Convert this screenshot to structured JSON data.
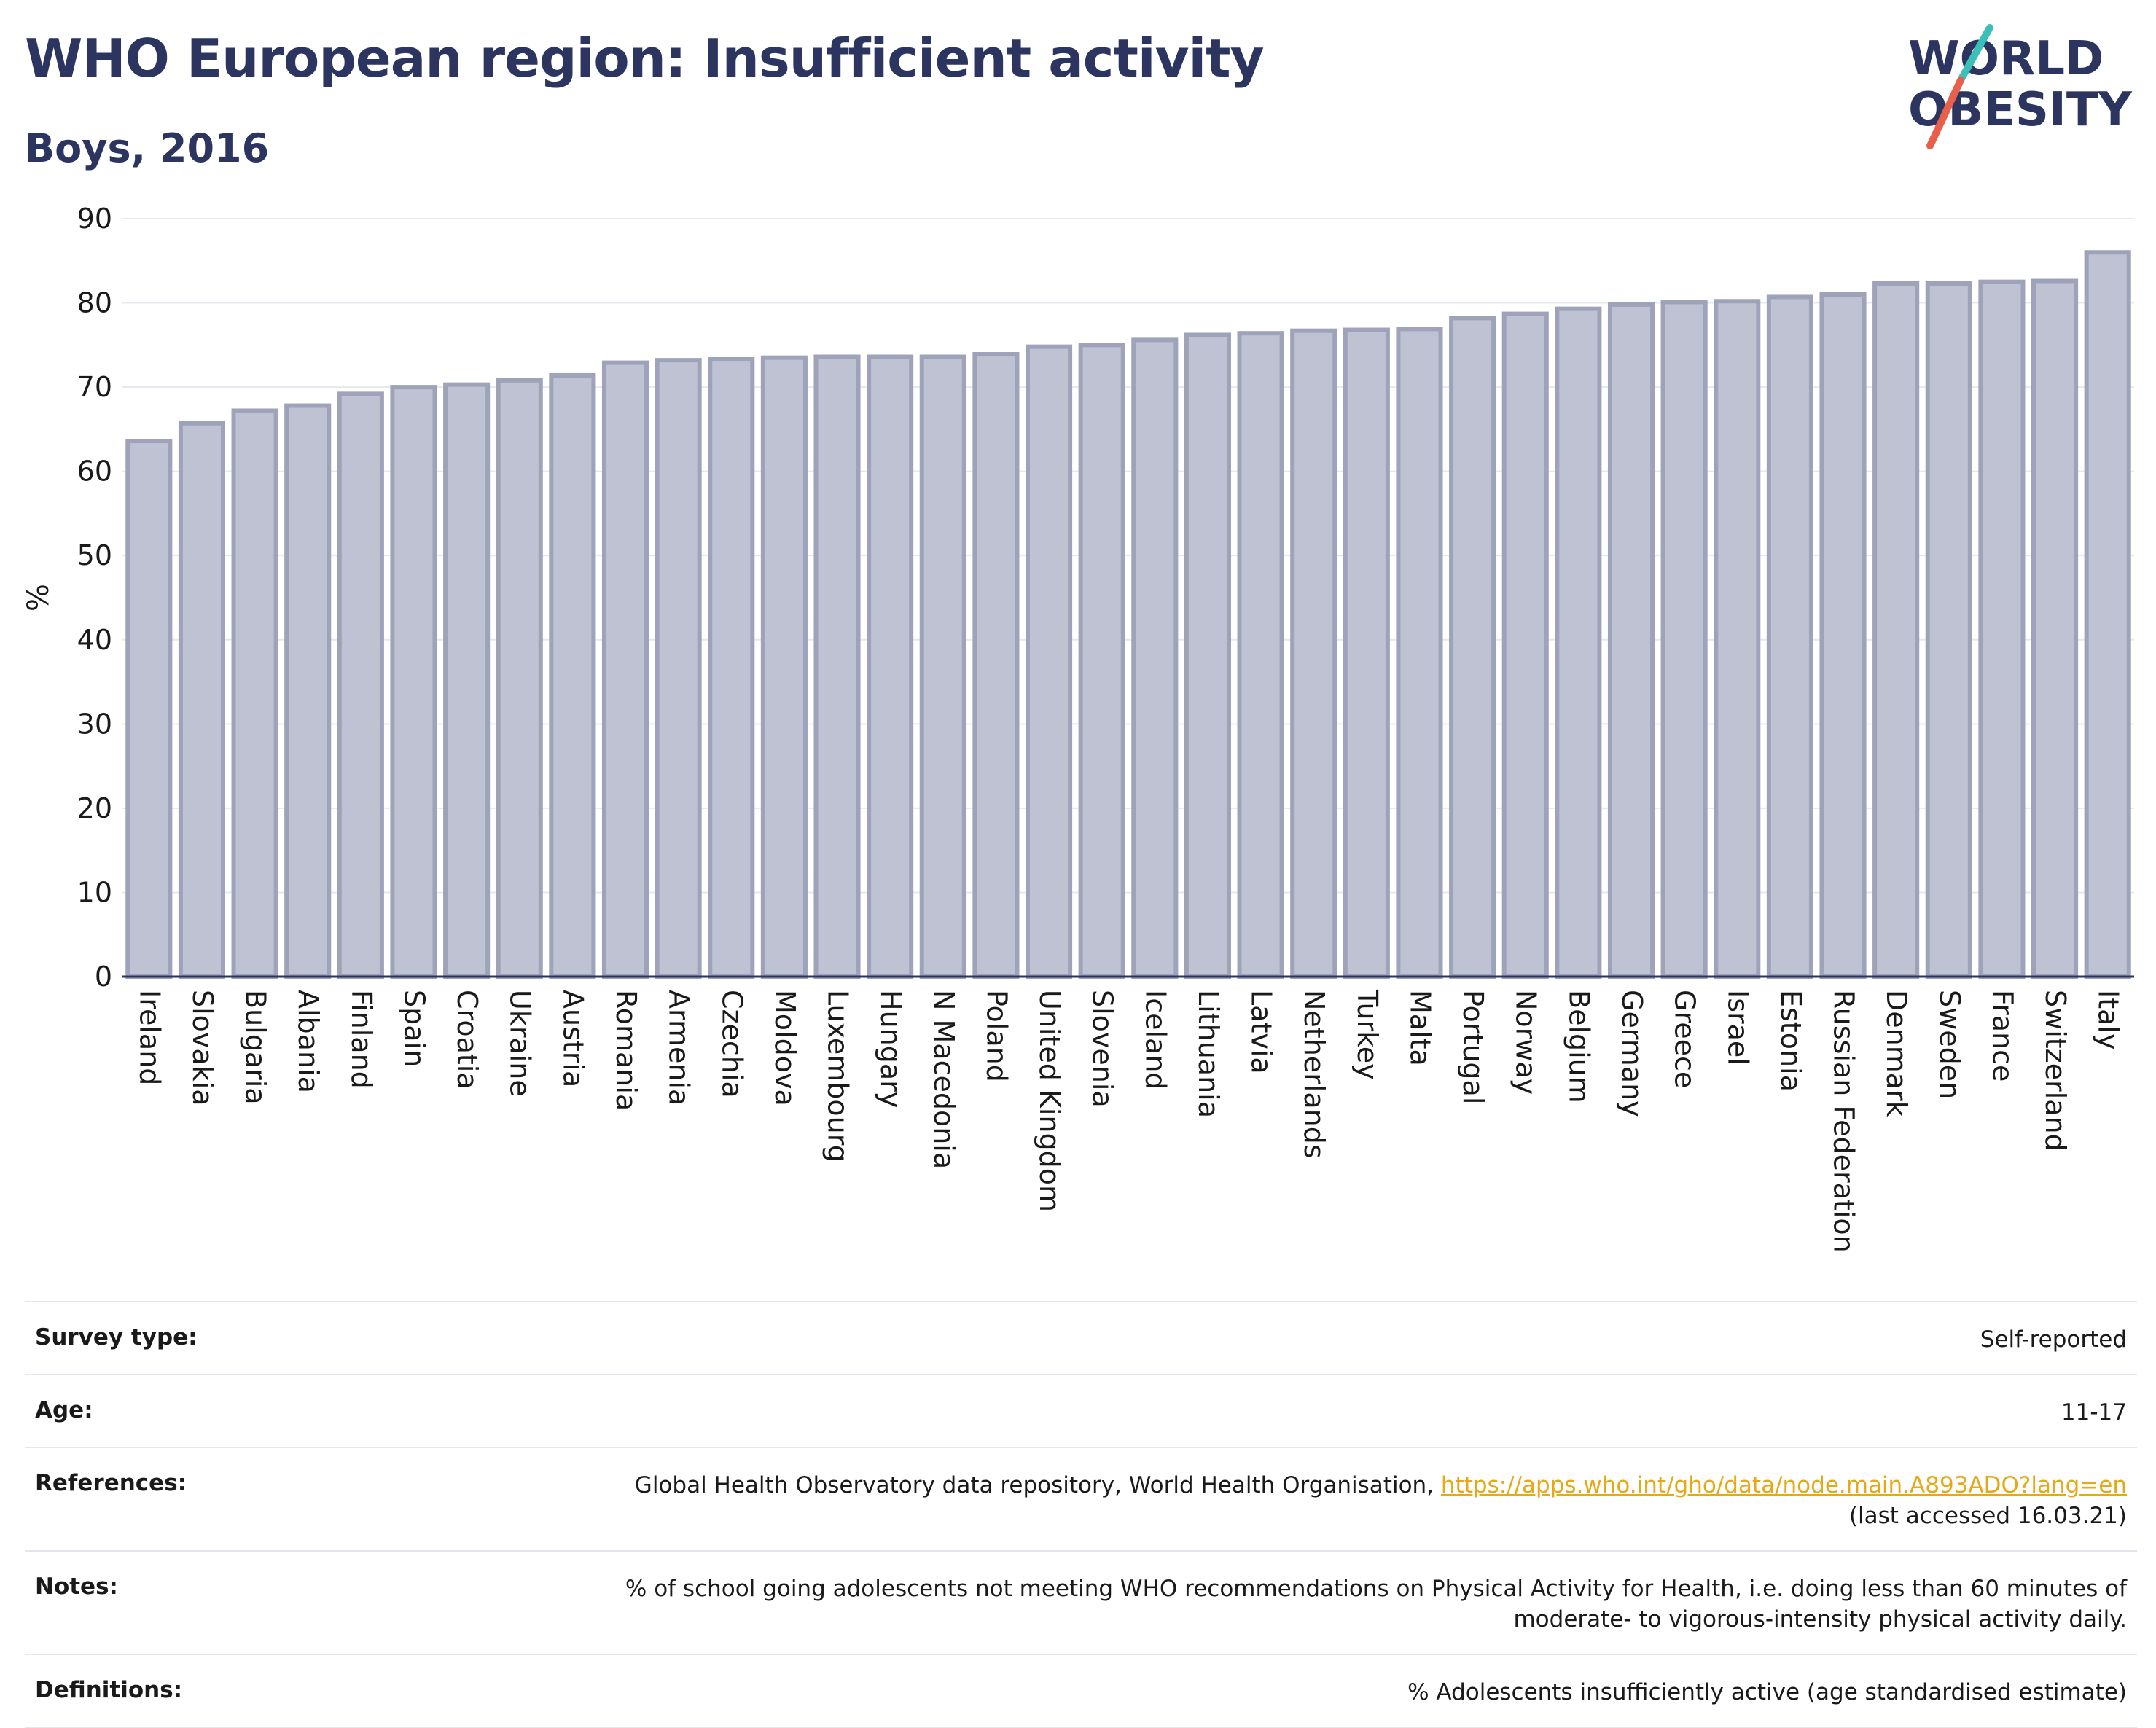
{
  "header": {
    "title": "WHO European region: Insufficient activity",
    "subtitle": "Boys, 2016",
    "logo_line1": "WORLD",
    "logo_line2": "OBESITY"
  },
  "colors": {
    "bar_fill": "#bfc2d2",
    "bar_stroke": "#9ea3ba",
    "title": "#2b3560",
    "grid": "#e6e8ef",
    "link": "#e6a817",
    "logo_teal": "#3bbfb8",
    "logo_red": "#e8604c"
  },
  "chart_data": {
    "type": "bar",
    "title": "WHO European region: Insufficient activity",
    "subtitle": "Boys, 2016",
    "xlabel": "",
    "ylabel": "%",
    "ylim": [
      0,
      90
    ],
    "yticks": [
      0,
      10,
      20,
      30,
      40,
      50,
      60,
      70,
      80,
      90
    ],
    "grid": true,
    "categories": [
      "Ireland",
      "Slovakia",
      "Bulgaria",
      "Albania",
      "Finland",
      "Spain",
      "Croatia",
      "Ukraine",
      "Austria",
      "Romania",
      "Armenia",
      "Czechia",
      "Moldova",
      "Luxembourg",
      "Hungary",
      "N Macedonia",
      "Poland",
      "United Kingdom",
      "Slovenia",
      "Iceland",
      "Lithuania",
      "Latvia",
      "Netherlands",
      "Turkey",
      "Malta",
      "Portugal",
      "Norway",
      "Belgium",
      "Germany",
      "Greece",
      "Israel",
      "Estonia",
      "Russian Federation",
      "Denmark",
      "Sweden",
      "France",
      "Switzerland",
      "Italy"
    ],
    "values": [
      63.6,
      65.7,
      67.2,
      67.8,
      69.2,
      70.0,
      70.3,
      70.8,
      71.4,
      72.9,
      73.2,
      73.3,
      73.5,
      73.6,
      73.6,
      73.6,
      73.9,
      74.8,
      75.0,
      75.6,
      76.2,
      76.4,
      76.7,
      76.8,
      76.9,
      78.2,
      78.7,
      79.3,
      79.8,
      80.1,
      80.2,
      80.7,
      81.0,
      82.3,
      82.3,
      82.5,
      82.6,
      86.0
    ]
  },
  "info": {
    "survey_type_label": "Survey type:",
    "survey_type_value": "Self-reported",
    "age_label": "Age:",
    "age_value": "11-17",
    "references_label": "References:",
    "references_text": "Global Health Observatory data repository, World Health Organisation,",
    "references_link": "https://apps.who.int/gho/data/node.main.A893ADO?lang=en",
    "references_accessed": "(last accessed 16.03.21)",
    "notes_label": "Notes:",
    "notes_line1": "% of school going adolescents not meeting WHO recommendations on Physical Activity for Health, i.e. doing less than 60 minutes of",
    "notes_line2": "moderate- to vigorous-intensity physical activity daily.",
    "definitions_label": "Definitions:",
    "definitions_value": "% Adolescents insufficiently active (age standardised estimate)"
  }
}
